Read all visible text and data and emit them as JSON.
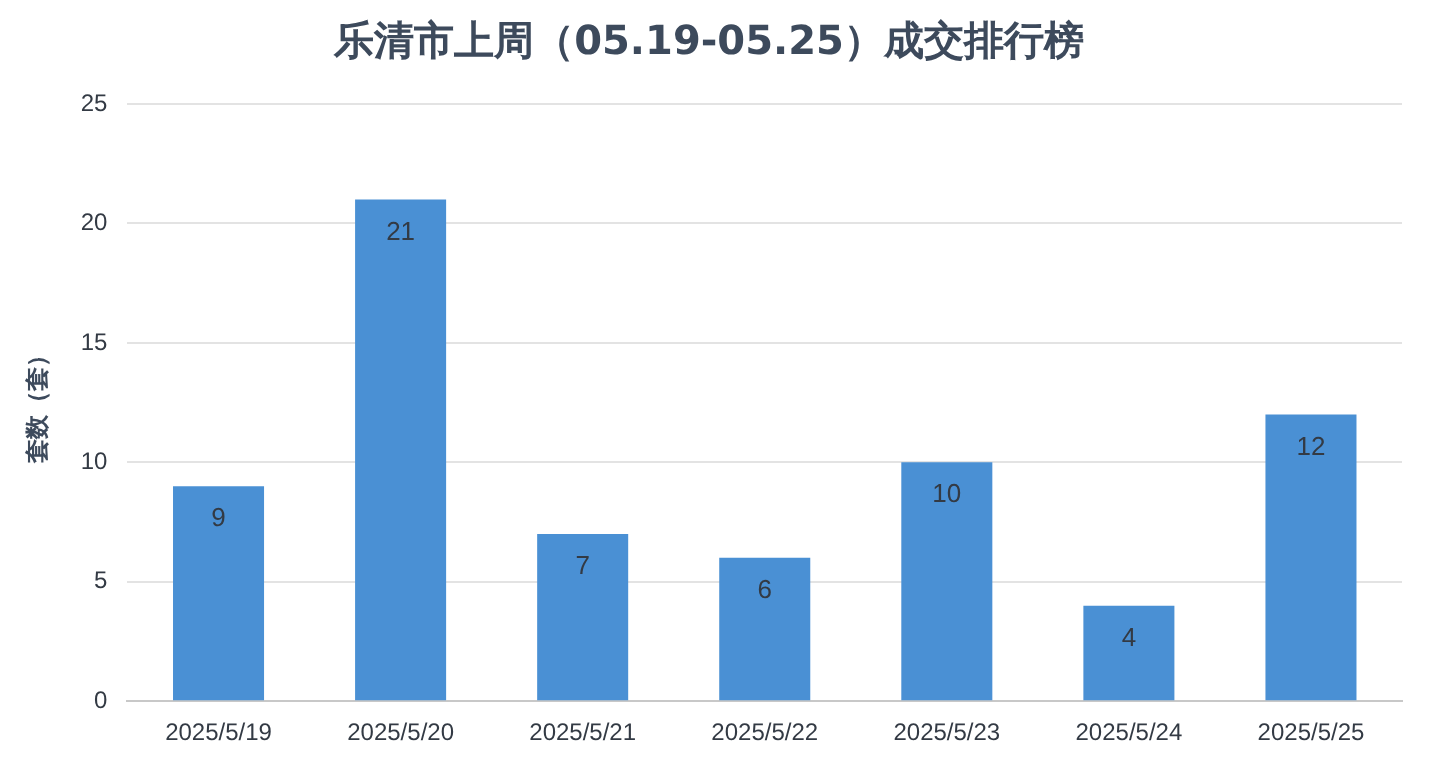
{
  "chart_data": {
    "type": "bar",
    "title": "乐清市上周（05.19-05.25）成交排行榜",
    "ylabel": "套数（套）",
    "categories": [
      "2025/5/19",
      "2025/5/20",
      "2025/5/21",
      "2025/5/22",
      "2025/5/23",
      "2025/5/24",
      "2025/5/25"
    ],
    "values": [
      9,
      21,
      7,
      6,
      10,
      4,
      12
    ],
    "color": "#4a90d4",
    "ylim": [
      0,
      25
    ],
    "yticks": [
      0,
      5,
      10,
      15,
      20,
      25
    ],
    "grid": "y",
    "data_labels": true,
    "legend": false
  }
}
